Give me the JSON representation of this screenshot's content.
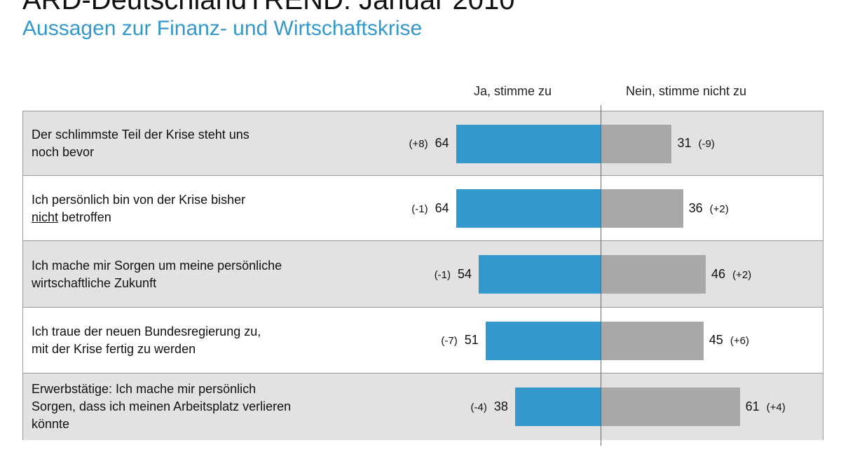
{
  "title": "ARD-DeutschlandTREND: Januar 2010",
  "subtitle": "Aussagen zur Finanz- und Wirtschaftskrise",
  "chart_data": {
    "type": "bar",
    "orientation": "horizontal-diverging",
    "categories": [
      "Der schlimmste Teil der Krise steht uns noch bevor",
      "Ich persönlich bin von der Krise bisher nicht betroffen",
      "Ich mache mir Sorgen um meine persönliche wirtschaftliche Zukunft",
      "Ich traue der neuen Bundesregierung zu, mit der Krise fertig zu werden",
      "Erwerbstätige: Ich mache mir persönlich Sorgen, dass ich meinen Arbeitsplatz verlieren könnte"
    ],
    "series": [
      {
        "name": "Ja, stimme zu",
        "values": [
          64,
          64,
          54,
          51,
          38
        ],
        "changes": [
          "(+8)",
          "(-1)",
          "(-1)",
          "(-7)",
          "(-4)"
        ],
        "color": "#3399cc"
      },
      {
        "name": "Nein, stimme nicht zu",
        "values": [
          31,
          36,
          46,
          45,
          61
        ],
        "changes": [
          "(-9)",
          "(+2)",
          "(+2)",
          "(+6)",
          "(+4)"
        ],
        "color": "#a8a8a8"
      }
    ]
  }
}
